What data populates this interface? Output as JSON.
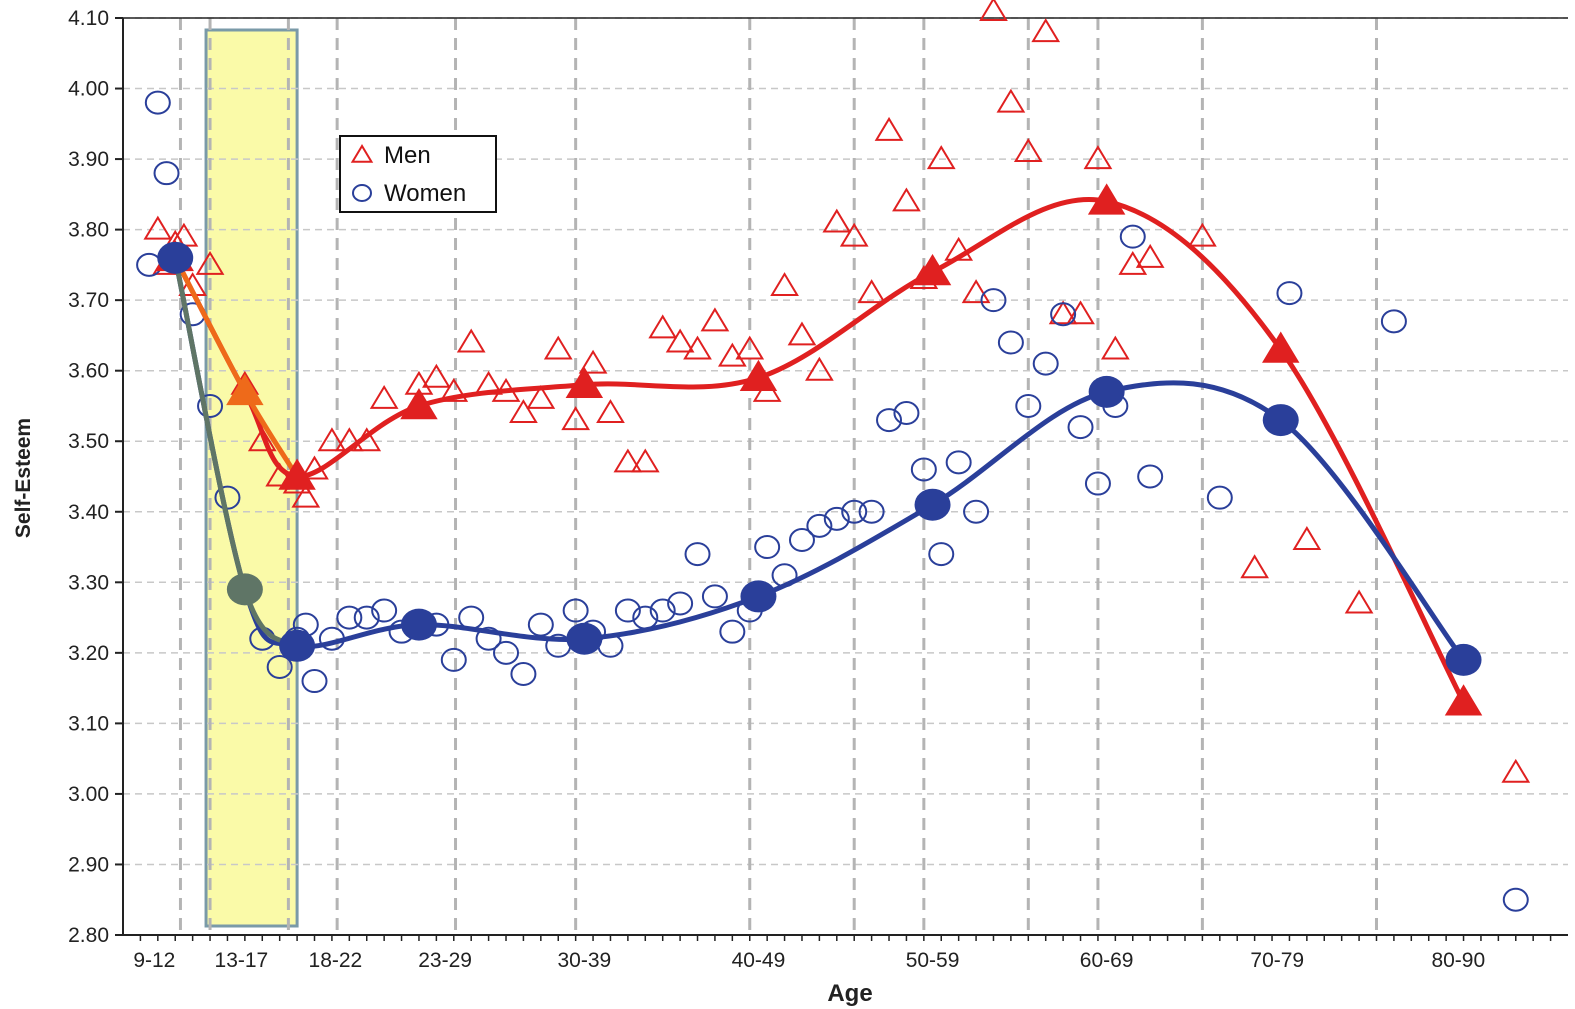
{
  "chart_data": {
    "type": "scatter",
    "xlabel": "Age",
    "ylabel": "Self-Esteem",
    "ylim": [
      2.8,
      4.1
    ],
    "yticks": [
      "2.80",
      "2.90",
      "3.00",
      "3.10",
      "3.20",
      "3.30",
      "3.40",
      "3.50",
      "3.60",
      "3.70",
      "3.80",
      "3.90",
      "4.00",
      "4.10"
    ],
    "categories": [
      "9-12",
      "13-17",
      "18-22",
      "23-29",
      "30-39",
      "40-49",
      "50-59",
      "60-69",
      "70-79",
      "80-90"
    ],
    "grid": true,
    "legend_position": "top-left",
    "highlight": {
      "from": 13,
      "to": 18,
      "color": "#fafaa8",
      "border": "#7a9aa8"
    },
    "series": [
      {
        "name": "Men",
        "color": "#e02020",
        "marker": "triangle",
        "trend": [
          [
            11,
            3.76
          ],
          [
            15,
            3.57
          ],
          [
            18,
            3.45
          ],
          [
            25,
            3.55
          ],
          [
            34.5,
            3.58
          ],
          [
            44.5,
            3.59
          ],
          [
            54.5,
            3.74
          ],
          [
            64.5,
            3.84
          ],
          [
            74.5,
            3.63
          ],
          [
            85,
            3.13
          ]
        ],
        "points": [
          [
            10,
            3.8
          ],
          [
            10.5,
            3.75
          ],
          [
            11,
            3.78
          ],
          [
            11.5,
            3.79
          ],
          [
            12,
            3.72
          ],
          [
            13,
            3.75
          ],
          [
            15,
            3.58
          ],
          [
            16,
            3.5
          ],
          [
            17,
            3.45
          ],
          [
            18,
            3.44
          ],
          [
            18.5,
            3.42
          ],
          [
            19,
            3.46
          ],
          [
            20,
            3.5
          ],
          [
            21,
            3.5
          ],
          [
            22,
            3.5
          ],
          [
            23,
            3.56
          ],
          [
            25,
            3.58
          ],
          [
            26,
            3.59
          ],
          [
            27,
            3.57
          ],
          [
            28,
            3.64
          ],
          [
            29,
            3.58
          ],
          [
            30,
            3.57
          ],
          [
            31,
            3.54
          ],
          [
            32,
            3.56
          ],
          [
            33,
            3.63
          ],
          [
            34,
            3.53
          ],
          [
            35,
            3.61
          ],
          [
            36,
            3.54
          ],
          [
            37,
            3.47
          ],
          [
            38,
            3.47
          ],
          [
            39,
            3.66
          ],
          [
            40,
            3.64
          ],
          [
            41,
            3.63
          ],
          [
            42,
            3.67
          ],
          [
            43,
            3.62
          ],
          [
            44,
            3.63
          ],
          [
            45,
            3.57
          ],
          [
            46,
            3.72
          ],
          [
            47,
            3.65
          ],
          [
            48,
            3.6
          ],
          [
            49,
            3.81
          ],
          [
            50,
            3.79
          ],
          [
            51,
            3.71
          ],
          [
            52,
            3.94
          ],
          [
            53,
            3.84
          ],
          [
            54,
            3.73
          ],
          [
            55,
            3.9
          ],
          [
            56,
            3.77
          ],
          [
            57,
            3.71
          ],
          [
            58,
            4.11
          ],
          [
            59,
            3.98
          ],
          [
            60,
            3.91
          ],
          [
            61,
            4.08
          ],
          [
            62,
            3.68
          ],
          [
            63,
            3.68
          ],
          [
            64,
            3.9
          ],
          [
            65,
            3.63
          ],
          [
            66,
            3.75
          ],
          [
            67,
            3.76
          ],
          [
            70,
            3.79
          ],
          [
            73,
            3.32
          ],
          [
            76,
            3.36
          ],
          [
            79,
            3.27
          ],
          [
            88,
            3.03
          ]
        ]
      },
      {
        "name": "Women",
        "color": "#2a3f9a",
        "marker": "circle",
        "trend": [
          [
            11,
            3.76
          ],
          [
            15,
            3.29
          ],
          [
            18,
            3.21
          ],
          [
            25,
            3.24
          ],
          [
            34.5,
            3.22
          ],
          [
            44.5,
            3.28
          ],
          [
            54.5,
            3.41
          ],
          [
            64.5,
            3.57
          ],
          [
            74.5,
            3.53
          ],
          [
            85,
            3.19
          ]
        ],
        "points": [
          [
            9.5,
            3.75
          ],
          [
            10,
            3.98
          ],
          [
            10.5,
            3.88
          ],
          [
            11,
            3.76
          ],
          [
            12,
            3.68
          ],
          [
            13,
            3.55
          ],
          [
            14,
            3.42
          ],
          [
            16,
            3.22
          ],
          [
            17,
            3.18
          ],
          [
            18,
            3.22
          ],
          [
            18.5,
            3.24
          ],
          [
            19,
            3.16
          ],
          [
            20,
            3.22
          ],
          [
            21,
            3.25
          ],
          [
            22,
            3.25
          ],
          [
            23,
            3.26
          ],
          [
            24,
            3.23
          ],
          [
            25,
            3.24
          ],
          [
            26,
            3.24
          ],
          [
            27,
            3.19
          ],
          [
            28,
            3.25
          ],
          [
            29,
            3.22
          ],
          [
            30,
            3.2
          ],
          [
            31,
            3.17
          ],
          [
            32,
            3.24
          ],
          [
            33,
            3.21
          ],
          [
            34,
            3.26
          ],
          [
            35,
            3.23
          ],
          [
            36,
            3.21
          ],
          [
            37,
            3.26
          ],
          [
            38,
            3.25
          ],
          [
            39,
            3.26
          ],
          [
            40,
            3.27
          ],
          [
            41,
            3.34
          ],
          [
            42,
            3.28
          ],
          [
            43,
            3.23
          ],
          [
            44,
            3.26
          ],
          [
            45,
            3.35
          ],
          [
            46,
            3.31
          ],
          [
            47,
            3.36
          ],
          [
            48,
            3.38
          ],
          [
            49,
            3.39
          ],
          [
            50,
            3.4
          ],
          [
            51,
            3.4
          ],
          [
            52,
            3.53
          ],
          [
            53,
            3.54
          ],
          [
            54,
            3.46
          ],
          [
            55,
            3.34
          ],
          [
            56,
            3.47
          ],
          [
            57,
            3.4
          ],
          [
            58,
            3.7
          ],
          [
            59,
            3.64
          ],
          [
            60,
            3.55
          ],
          [
            61,
            3.61
          ],
          [
            62,
            3.68
          ],
          [
            63,
            3.52
          ],
          [
            64,
            3.44
          ],
          [
            65,
            3.55
          ],
          [
            66,
            3.79
          ],
          [
            67,
            3.45
          ],
          [
            71,
            3.42
          ],
          [
            75,
            3.71
          ],
          [
            81,
            3.67
          ],
          [
            88,
            2.85
          ]
        ]
      }
    ]
  }
}
